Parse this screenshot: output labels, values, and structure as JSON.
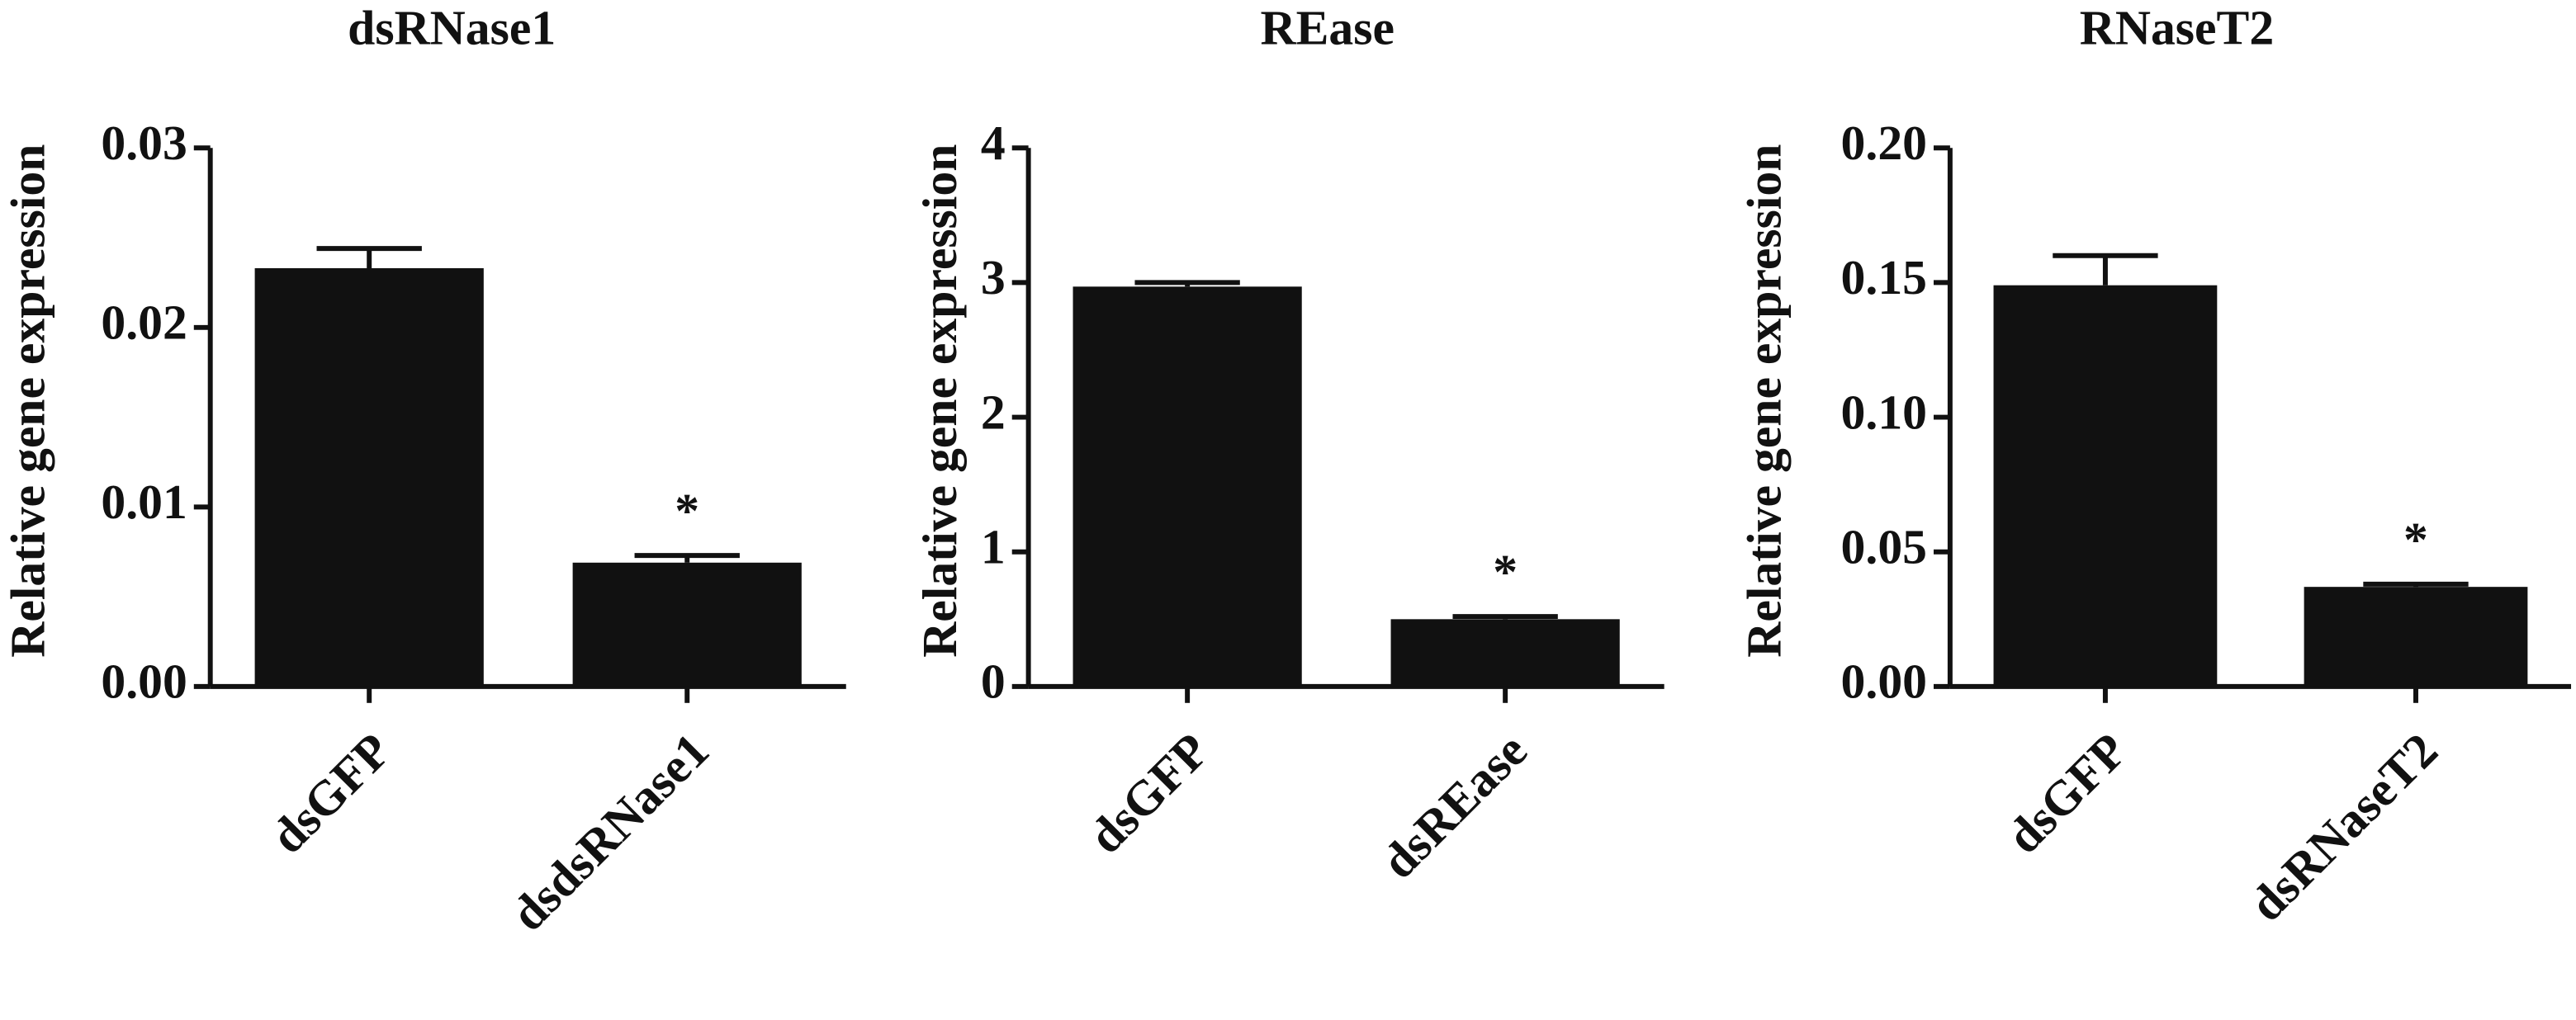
{
  "chart_data": [
    {
      "type": "bar",
      "title": "dsRNase1",
      "y_label": "Relative gene expression",
      "categories": [
        "dsGFP",
        "dsdsRNase1"
      ],
      "values": [
        0.0233,
        0.0069
      ],
      "errors": [
        0.0011,
        0.0004
      ],
      "markers": [
        null,
        "*"
      ],
      "color": "#111111",
      "ylim": [
        0,
        0.03
      ],
      "yticks": [
        {
          "value": 0,
          "label": "0.00"
        },
        {
          "value": 0.01,
          "label": "0.01"
        },
        {
          "value": 0.02,
          "label": "0.02"
        },
        {
          "value": 0.03,
          "label": "0.03"
        }
      ]
    },
    {
      "type": "bar",
      "title": "REase",
      "y_label": "Relative gene expression",
      "categories": [
        "dsGFP",
        "dsREase"
      ],
      "values": [
        2.97,
        0.5
      ],
      "errors": [
        0.03,
        0.02
      ],
      "markers": [
        null,
        "*"
      ],
      "color": "#111111",
      "ylim": [
        0,
        4
      ],
      "yticks": [
        0,
        1,
        2,
        3,
        4
      ]
    },
    {
      "type": "bar",
      "title": "RNaseT2",
      "y_label": "Relative gene expression",
      "categories": [
        "dsGFP",
        "dsRNaseT2"
      ],
      "values": [
        0.149,
        0.037
      ],
      "errors": [
        0.011,
        0.001
      ],
      "markers": [
        null,
        "*"
      ],
      "color": "#111111",
      "ylim": [
        0,
        0.2
      ],
      "yticks": [
        {
          "value": 0,
          "label": "0.00"
        },
        {
          "value": 0.05,
          "label": "0.05"
        },
        {
          "value": 0.1,
          "label": "0.10"
        },
        {
          "value": 0.15,
          "label": "0.15"
        },
        {
          "value": 0.2,
          "label": "0.20"
        }
      ]
    }
  ]
}
